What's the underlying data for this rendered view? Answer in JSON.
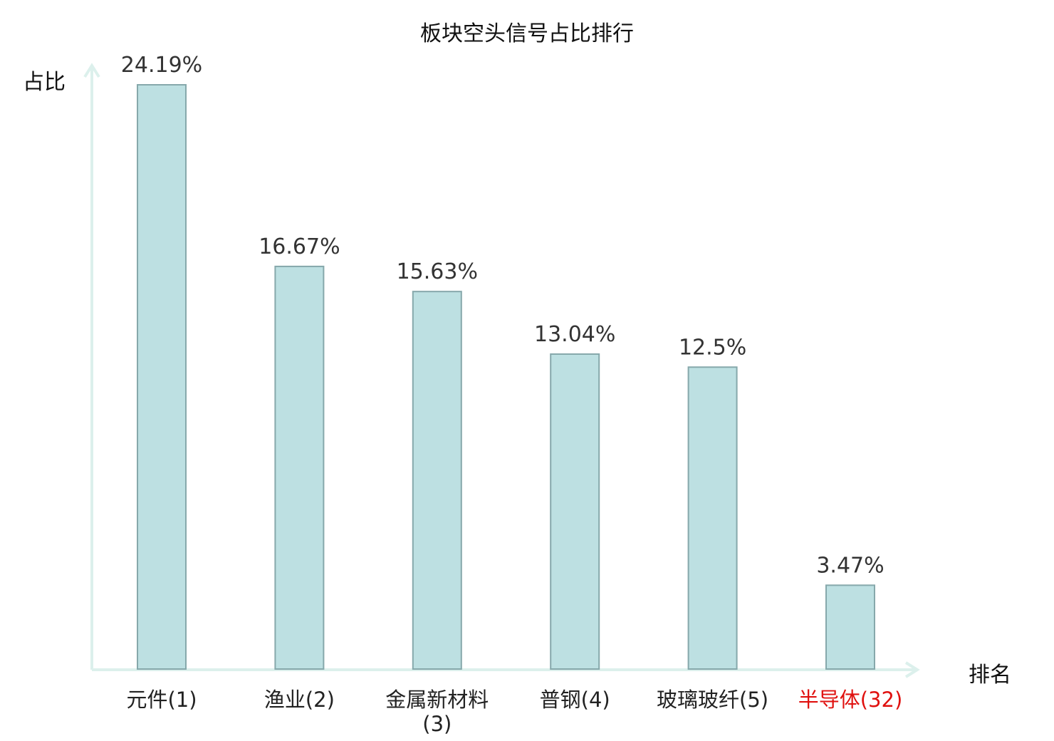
{
  "chart_data": {
    "type": "bar",
    "title": "板块空头信号占比排行",
    "xlabel": "排名",
    "ylabel": "占比",
    "categories": [
      "元件(1)",
      "渔业(2)",
      "金属新材料(3)",
      "普钢(4)",
      "玻璃玻纤(5)",
      "半导体(32)"
    ],
    "category_lines": [
      [
        "元件(1)"
      ],
      [
        "渔业(2)"
      ],
      [
        "金属新材料",
        "(3)"
      ],
      [
        "普钢(4)"
      ],
      [
        "玻璃玻纤(5)"
      ],
      [
        "半导体(32)"
      ]
    ],
    "values": [
      24.19,
      16.67,
      15.63,
      13.04,
      12.5,
      3.47
    ],
    "value_labels": [
      "24.19%",
      "16.67%",
      "15.63%",
      "13.04%",
      "12.5%",
      "3.47%"
    ],
    "highlight_index": 5,
    "ylim": [
      0,
      24.19
    ],
    "grid": false,
    "colors": {
      "bar_fill": "#bde0e2",
      "bar_stroke": "#86a8ab",
      "axis": "#dcf0ec",
      "highlight": "#e0110f"
    }
  }
}
